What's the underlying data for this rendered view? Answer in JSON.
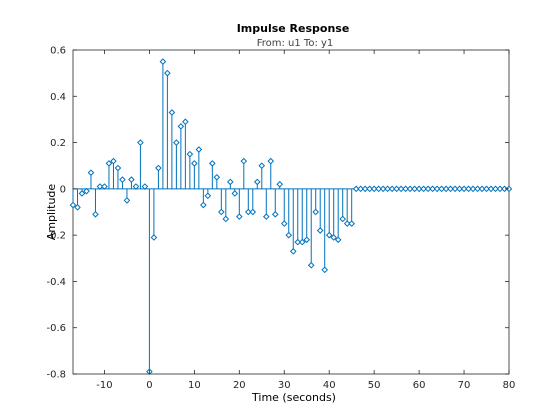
{
  "chart_data": {
    "type": "stem",
    "title": "Impulse Response",
    "subtitle": "From: u1  To: y1",
    "xlabel": "Time (seconds)",
    "ylabel": "Amplitude",
    "xlim": [
      -17,
      80
    ],
    "ylim": [
      -0.8,
      0.6
    ],
    "xticks": [
      -10,
      0,
      10,
      20,
      30,
      40,
      50,
      60,
      70,
      80
    ],
    "yticks": [
      -0.8,
      -0.6,
      -0.4,
      -0.2,
      0,
      0.2,
      0.4,
      0.6
    ],
    "xtick_labels": [
      "-10",
      "0",
      "10",
      "20",
      "30",
      "40",
      "50",
      "60",
      "70",
      "80"
    ],
    "ytick_labels": [
      "-0.8",
      "-0.6",
      "-0.4",
      "-0.2",
      "0",
      "0.2",
      "0.4",
      "0.6"
    ],
    "grid": false,
    "colors": {
      "stem": "#0072BD",
      "axes": "#262626"
    },
    "series": [
      {
        "t": [
          -17,
          -16,
          -15,
          -14,
          -13,
          -12,
          -11,
          -10,
          -9,
          -8,
          -7,
          -6,
          -5,
          -4,
          -3,
          -2,
          -1,
          0,
          1,
          2,
          3,
          4,
          5,
          6,
          7,
          8,
          9,
          10,
          11,
          12,
          13,
          14,
          15,
          16,
          17,
          18,
          19,
          20,
          21,
          22,
          23,
          24,
          25,
          26,
          27,
          28,
          29,
          30,
          31,
          32,
          33,
          34,
          35,
          36,
          37,
          38,
          39,
          40,
          41,
          42,
          43,
          44,
          45,
          46,
          47,
          48,
          49,
          50,
          51,
          52,
          53,
          54,
          55,
          56,
          57,
          58,
          59,
          60,
          61,
          62,
          63,
          64,
          65,
          66,
          67,
          68,
          69,
          70,
          71,
          72,
          73,
          74,
          75,
          76,
          77,
          78,
          79,
          80
        ],
        "y": [
          -0.07,
          -0.08,
          -0.02,
          -0.01,
          0.07,
          -0.11,
          0.01,
          0.01,
          0.11,
          0.12,
          0.09,
          0.04,
          -0.05,
          0.04,
          0.01,
          0.2,
          0.01,
          -0.79,
          -0.21,
          0.09,
          0.55,
          0.5,
          0.33,
          0.2,
          0.27,
          0.29,
          0.15,
          0.11,
          0.17,
          -0.07,
          -0.03,
          0.11,
          0.05,
          -0.1,
          -0.13,
          0.03,
          -0.02,
          -0.12,
          0.12,
          -0.1,
          -0.1,
          0.03,
          0.1,
          -0.12,
          0.12,
          -0.11,
          0.02,
          -0.15,
          -0.2,
          -0.27,
          -0.23,
          -0.23,
          -0.22,
          -0.33,
          -0.1,
          -0.18,
          -0.35,
          -0.2,
          -0.21,
          -0.22,
          -0.13,
          -0.15,
          -0.15,
          0,
          0,
          0,
          0,
          0,
          0,
          0,
          0,
          0,
          0,
          0,
          0,
          0,
          0,
          0,
          0,
          0,
          0,
          0,
          0,
          0,
          0,
          0,
          0,
          0,
          0,
          0,
          0,
          0,
          0,
          0,
          0,
          0,
          0,
          0
        ]
      }
    ]
  }
}
